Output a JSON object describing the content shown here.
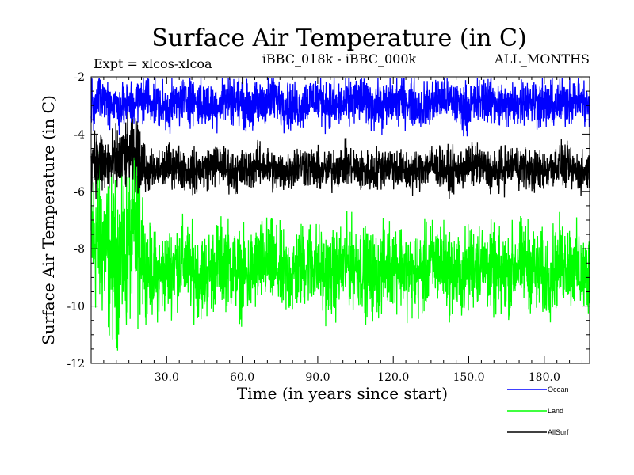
{
  "chart_data": {
    "type": "line",
    "title": "Surface Air Temperature (in C)",
    "subtitle_left": "Expt = xlcos-xlcoa",
    "subtitle_center": "iBBC_018k - iBBC_000k",
    "subtitle_right": "ALL_MONTHS",
    "xlabel": "Time (in years since start)",
    "ylabel": "Surface Air Temperature (in C)",
    "xlim": [
      0,
      198
    ],
    "ylim": [
      -12,
      -2
    ],
    "x_ticks": [
      30,
      60,
      90,
      120,
      150,
      180
    ],
    "x_tick_labels": [
      "30.0",
      "60.0",
      "90.0",
      "120.0",
      "150.0",
      "180.0"
    ],
    "y_ticks": [
      -12,
      -10,
      -8,
      -6,
      -4,
      -2
    ],
    "y_tick_labels": [
      "-12",
      "-10",
      "-8",
      "-6",
      "-4",
      "-2"
    ],
    "series": [
      {
        "name": "Ocean",
        "color": "#0000ff",
        "mean": -2.9,
        "amplitude": 0.9,
        "early_mean": -2.9,
        "early_amplitude": 0.9,
        "spinup_years": 0
      },
      {
        "name": "Land",
        "color": "#00ff00",
        "mean": -8.7,
        "amplitude": 1.6,
        "early_mean": -8.0,
        "early_amplitude": 3.0,
        "spinup_years": 21
      },
      {
        "name": "AllSurf",
        "color": "#000000",
        "mean": -5.2,
        "amplitude": 0.8,
        "early_mean": -4.9,
        "early_amplitude": 1.3,
        "spinup_years": 21
      }
    ],
    "points_per_year": 12,
    "legend_position": "bottom-right"
  }
}
